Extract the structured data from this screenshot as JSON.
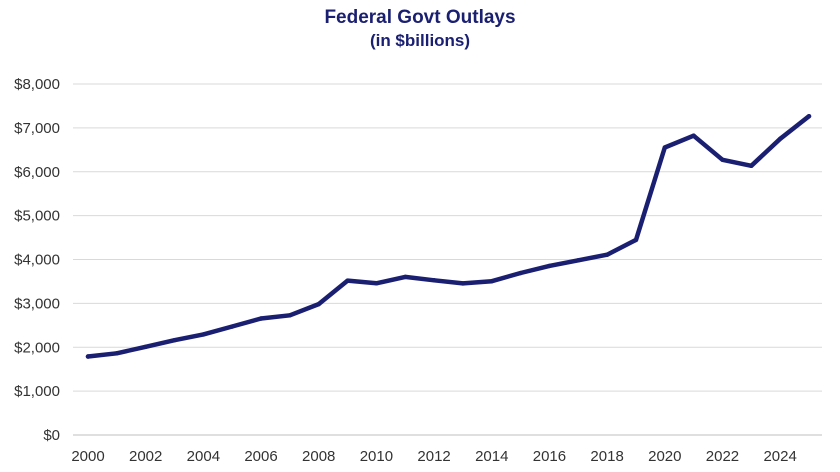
{
  "chart_data": {
    "type": "line",
    "title": "Federal Govt Outlays",
    "subtitle": "(in $billions)",
    "xlabel": "",
    "ylabel": "",
    "x": [
      2000,
      2001,
      2002,
      2003,
      2004,
      2005,
      2006,
      2007,
      2008,
      2009,
      2010,
      2011,
      2012,
      2013,
      2014,
      2015,
      2016,
      2017,
      2018,
      2019,
      2020,
      2021,
      2022,
      2023,
      2024,
      2025
    ],
    "series": [
      {
        "name": "Federal Govt Outlays",
        "color": "#1a1f71",
        "values": [
          1789,
          1863,
          2011,
          2160,
          2293,
          2472,
          2655,
          2729,
          2983,
          3518,
          3457,
          3603,
          3527,
          3455,
          3506,
          3692,
          3853,
          3982,
          4109,
          4447,
          6552,
          6822,
          6273,
          6135,
          6752,
          7265
        ]
      }
    ],
    "xlim": [
      2000,
      2025
    ],
    "ylim": [
      0,
      8000
    ],
    "y_ticks": [
      0,
      1000,
      2000,
      3000,
      4000,
      5000,
      6000,
      7000,
      8000
    ],
    "y_tick_labels": [
      "$0",
      "$1,000",
      "$2,000",
      "$3,000",
      "$4,000",
      "$5,000",
      "$6,000",
      "$7,000",
      "$8,000"
    ],
    "x_ticks": [
      2000,
      2002,
      2004,
      2006,
      2008,
      2010,
      2012,
      2014,
      2016,
      2018,
      2020,
      2022,
      2024
    ],
    "x_tick_labels": [
      "2000",
      "2002",
      "2004",
      "2006",
      "2008",
      "2010",
      "2012",
      "2014",
      "2016",
      "2018",
      "2020",
      "2022",
      "2024"
    ],
    "grid": true,
    "legend": "none"
  }
}
